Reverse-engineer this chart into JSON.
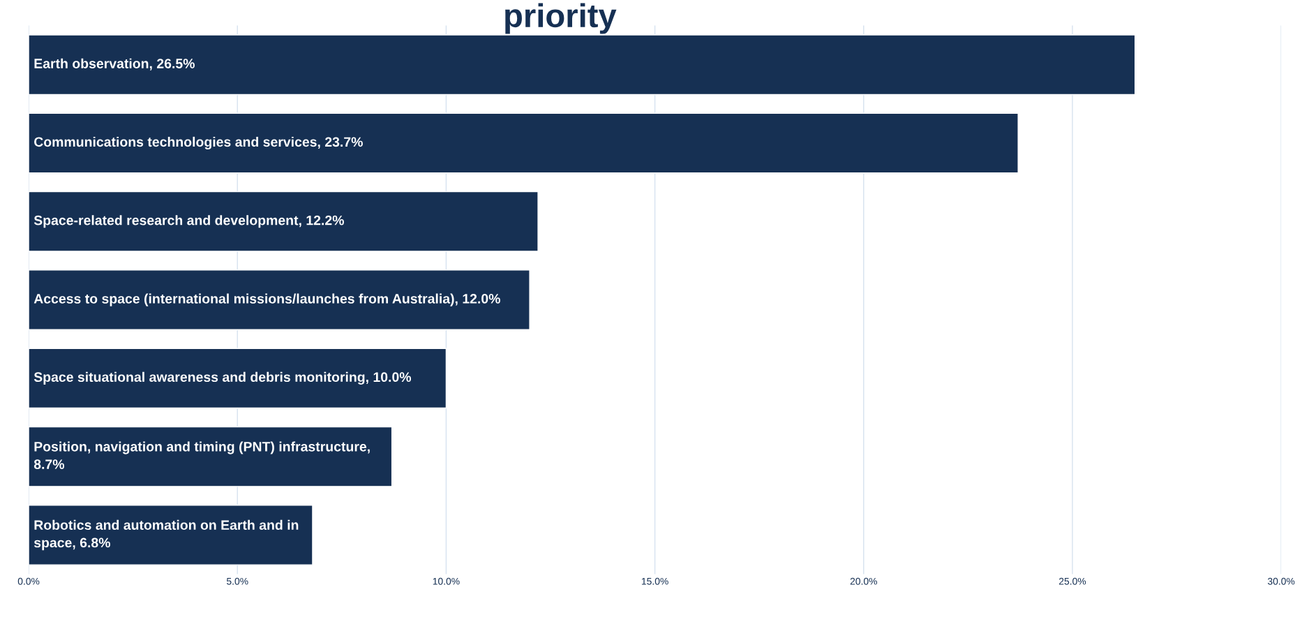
{
  "chart_data": {
    "type": "bar",
    "orientation": "horizontal",
    "title": "priority",
    "categories": [
      "Earth observation",
      "Communications technologies and services",
      "Space-related research and development",
      "Access to space (international missions/launches from Australia)",
      "Space situational awareness and debris monitoring",
      "Position, navigation and timing (PNT) infrastructure",
      "Robotics and automation on Earth and in space"
    ],
    "values": [
      26.5,
      23.7,
      12.2,
      12.0,
      10.0,
      8.7,
      6.8
    ],
    "value_labels": [
      ", 26.5%",
      ", 23.7%",
      ", 12.2%",
      ", 12.0%",
      ", 10.0%",
      ", 8.7%",
      ", 6.8%"
    ],
    "color": "#163053",
    "xlim": [
      0,
      30
    ],
    "xticks": [
      {
        "value": 0,
        "label": "0.0%"
      },
      {
        "value": 5,
        "label": "5.0%"
      },
      {
        "value": 10,
        "label": "10.0%"
      },
      {
        "value": 15,
        "label": "15.0%"
      },
      {
        "value": 20,
        "label": "20.0%"
      },
      {
        "value": 25,
        "label": "25.0%"
      },
      {
        "value": 30,
        "label": "30.0%"
      }
    ],
    "grid": "x",
    "tick_labels": "x"
  }
}
